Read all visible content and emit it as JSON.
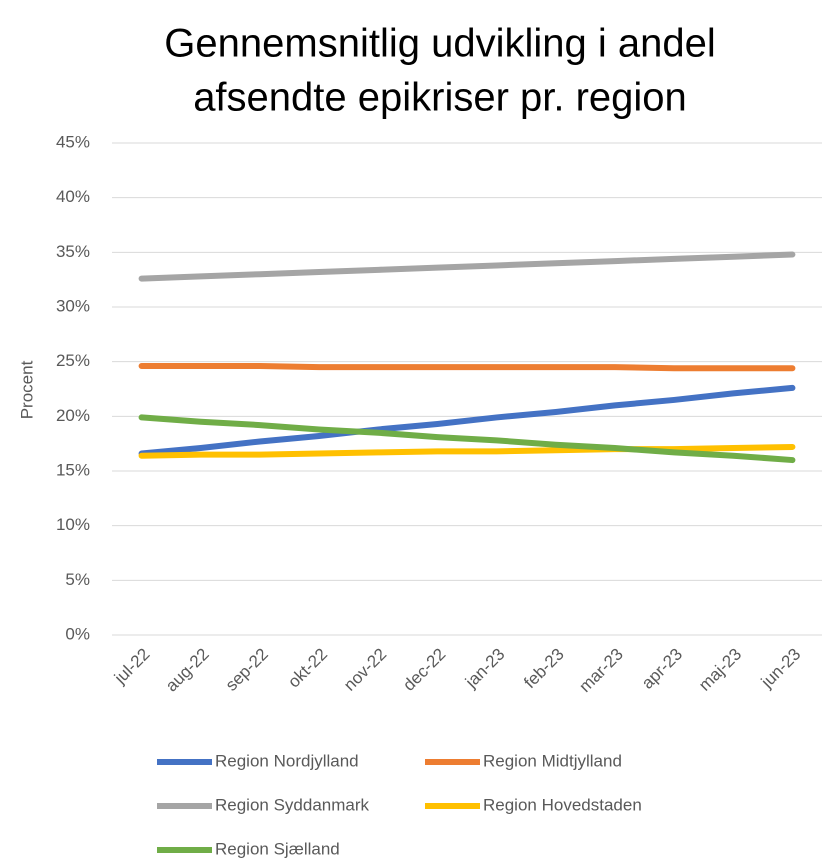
{
  "chart_data": {
    "type": "line",
    "title": [
      "Gennemsnitlig udvikling i andel",
      "afsendte epikriser pr. region"
    ],
    "y_label": "Procent",
    "categories": [
      "jul-22",
      "aug-22",
      "sep-22",
      "okt-22",
      "nov-22",
      "dec-22",
      "jan-23",
      "feb-23",
      "mar-23",
      "apr-23",
      "maj-23",
      "jun-23"
    ],
    "series": [
      {
        "name": "Region Nordjylland",
        "color": "#4472c4",
        "values": [
          16.6,
          17.1,
          17.7,
          18.2,
          18.8,
          19.3,
          19.9,
          20.4,
          21.0,
          21.5,
          22.1,
          22.6
        ]
      },
      {
        "name": "Region Midtjylland",
        "color": "#ed7d31",
        "values": [
          24.6,
          24.6,
          24.6,
          24.5,
          24.5,
          24.5,
          24.5,
          24.5,
          24.5,
          24.4,
          24.4,
          24.4
        ]
      },
      {
        "name": "Region Syddanmark",
        "color": "#a5a5a5",
        "values": [
          32.6,
          32.8,
          33.0,
          33.2,
          33.4,
          33.6,
          33.8,
          34.0,
          34.2,
          34.4,
          34.6,
          34.8
        ]
      },
      {
        "name": "Region Hovedstaden",
        "color": "#ffc000",
        "values": [
          16.4,
          16.5,
          16.5,
          16.6,
          16.7,
          16.8,
          16.8,
          16.9,
          17.0,
          17.0,
          17.1,
          17.2
        ]
      },
      {
        "name": "Region Sjælland",
        "color": "#70ad47",
        "values": [
          19.9,
          19.5,
          19.2,
          18.8,
          18.5,
          18.1,
          17.8,
          17.4,
          17.1,
          16.7,
          16.4,
          16.0
        ]
      }
    ],
    "ylim": [
      0,
      45
    ],
    "yticks": [
      {
        "value": 0,
        "label": "0%"
      },
      {
        "value": 5,
        "label": "5%"
      },
      {
        "value": 10,
        "label": "10%"
      },
      {
        "value": 15,
        "label": "15%"
      },
      {
        "value": 20,
        "label": "20%"
      },
      {
        "value": 25,
        "label": "25%"
      },
      {
        "value": 30,
        "label": "30%"
      },
      {
        "value": 35,
        "label": "35%"
      },
      {
        "value": 40,
        "label": "40%"
      },
      {
        "value": 45,
        "label": "45%"
      }
    ],
    "grid": true,
    "legend": "bottom"
  }
}
